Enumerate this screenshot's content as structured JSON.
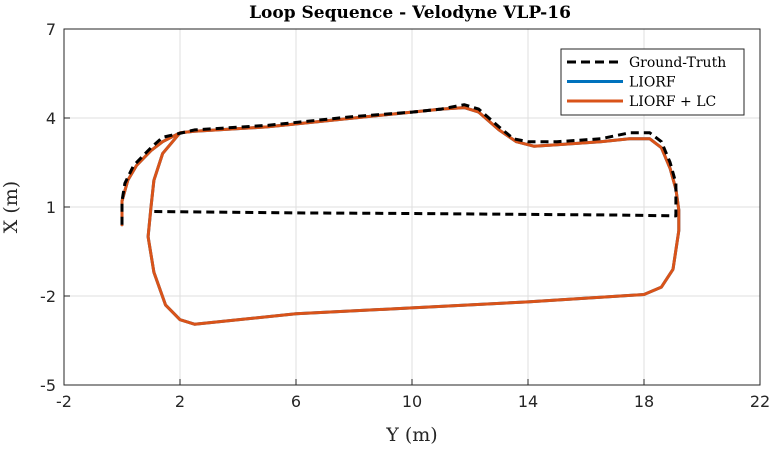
{
  "chart_data": {
    "type": "line",
    "title": "Loop Sequence - Velodyne VLP-16",
    "xlabel": "Y (m)",
    "ylabel": "X (m)",
    "xlim": [
      -2,
      22
    ],
    "ylim": [
      -5,
      7
    ],
    "xticks": [
      "-2",
      "2",
      "6",
      "10",
      "14",
      "18",
      "22"
    ],
    "yticks": [
      "-5",
      "-2",
      "1",
      "4",
      "7"
    ],
    "grid": true,
    "legend_position": "top-right",
    "series": [
      {
        "name": "Ground-Truth",
        "color": "#000000",
        "style": "dashed",
        "points": [
          [
            0.0,
            0.4
          ],
          [
            0.0,
            1.2
          ],
          [
            0.1,
            1.8
          ],
          [
            0.4,
            2.4
          ],
          [
            1.0,
            3.0
          ],
          [
            1.4,
            3.35
          ],
          [
            2.5,
            3.6
          ],
          [
            5.0,
            3.75
          ],
          [
            8.0,
            4.05
          ],
          [
            10.0,
            4.2
          ],
          [
            11.0,
            4.3
          ],
          [
            11.8,
            4.45
          ],
          [
            12.3,
            4.3
          ],
          [
            13.0,
            3.7
          ],
          [
            13.5,
            3.3
          ],
          [
            14.0,
            3.2
          ],
          [
            15.0,
            3.2
          ],
          [
            16.5,
            3.3
          ],
          [
            17.5,
            3.5
          ],
          [
            18.2,
            3.5
          ],
          [
            18.6,
            3.2
          ],
          [
            18.9,
            2.5
          ],
          [
            19.1,
            1.8
          ],
          [
            19.1,
            1.2
          ],
          [
            19.1,
            0.7
          ],
          [
            17.0,
            0.73
          ],
          [
            14.0,
            0.75
          ],
          [
            10.0,
            0.78
          ],
          [
            6.0,
            0.8
          ],
          [
            1.0,
            0.85
          ]
        ]
      },
      {
        "name": "LIORF",
        "color": "#0072bd",
        "style": "solid",
        "points": [
          [
            0.0,
            0.4
          ],
          [
            0.0,
            1.2
          ],
          [
            0.2,
            1.9
          ],
          [
            0.5,
            2.4
          ],
          [
            1.0,
            2.9
          ],
          [
            1.4,
            3.2
          ],
          [
            2.0,
            3.5
          ],
          [
            2.5,
            3.55
          ],
          [
            5.0,
            3.7
          ],
          [
            8.0,
            4.0
          ],
          [
            10.0,
            4.2
          ],
          [
            11.0,
            4.3
          ],
          [
            11.8,
            4.35
          ],
          [
            12.3,
            4.2
          ],
          [
            13.0,
            3.6
          ],
          [
            13.6,
            3.2
          ],
          [
            14.2,
            3.05
          ],
          [
            15.0,
            3.1
          ],
          [
            16.5,
            3.2
          ],
          [
            17.5,
            3.3
          ],
          [
            18.2,
            3.3
          ],
          [
            18.6,
            3.0
          ],
          [
            18.9,
            2.3
          ],
          [
            19.1,
            1.6
          ],
          [
            19.2,
            0.9
          ],
          [
            19.2,
            0.2
          ],
          [
            19.0,
            -1.1
          ],
          [
            18.6,
            -1.7
          ],
          [
            18.0,
            -1.95
          ],
          [
            14.0,
            -2.2
          ],
          [
            10.0,
            -2.4
          ],
          [
            6.0,
            -2.6
          ],
          [
            3.0,
            -2.9
          ],
          [
            2.5,
            -2.95
          ],
          [
            2.0,
            -2.8
          ],
          [
            1.5,
            -2.3
          ],
          [
            1.1,
            -1.2
          ],
          [
            0.9,
            0.0
          ],
          [
            1.0,
            1.0
          ],
          [
            1.1,
            1.9
          ],
          [
            1.4,
            2.8
          ],
          [
            2.0,
            3.5
          ]
        ]
      },
      {
        "name": "LIORF + LC",
        "color": "#d95319",
        "style": "solid",
        "points": [
          [
            0.0,
            0.4
          ],
          [
            0.0,
            1.2
          ],
          [
            0.2,
            1.9
          ],
          [
            0.5,
            2.4
          ],
          [
            1.0,
            2.9
          ],
          [
            1.4,
            3.2
          ],
          [
            2.0,
            3.5
          ],
          [
            2.5,
            3.55
          ],
          [
            5.0,
            3.7
          ],
          [
            8.0,
            4.0
          ],
          [
            10.0,
            4.2
          ],
          [
            11.0,
            4.3
          ],
          [
            11.8,
            4.35
          ],
          [
            12.3,
            4.2
          ],
          [
            13.0,
            3.6
          ],
          [
            13.6,
            3.2
          ],
          [
            14.2,
            3.05
          ],
          [
            15.0,
            3.1
          ],
          [
            16.5,
            3.2
          ],
          [
            17.5,
            3.3
          ],
          [
            18.2,
            3.3
          ],
          [
            18.6,
            3.0
          ],
          [
            18.9,
            2.3
          ],
          [
            19.1,
            1.6
          ],
          [
            19.2,
            0.9
          ],
          [
            19.2,
            0.2
          ],
          [
            19.0,
            -1.1
          ],
          [
            18.6,
            -1.7
          ],
          [
            18.0,
            -1.95
          ],
          [
            14.0,
            -2.2
          ],
          [
            10.0,
            -2.4
          ],
          [
            6.0,
            -2.6
          ],
          [
            3.0,
            -2.9
          ],
          [
            2.5,
            -2.95
          ],
          [
            2.0,
            -2.8
          ],
          [
            1.5,
            -2.3
          ],
          [
            1.1,
            -1.2
          ],
          [
            0.9,
            0.0
          ],
          [
            1.0,
            1.0
          ],
          [
            1.1,
            1.9
          ],
          [
            1.4,
            2.8
          ],
          [
            2.0,
            3.5
          ]
        ]
      }
    ]
  }
}
